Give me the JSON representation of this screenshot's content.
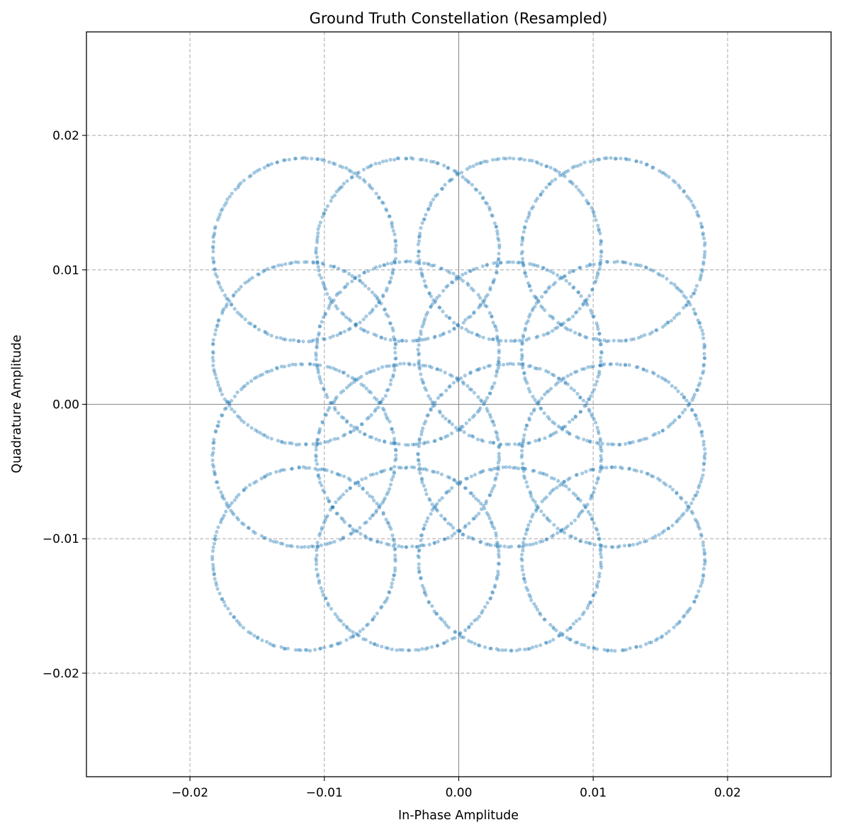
{
  "chart_data": {
    "type": "scatter",
    "title": "Ground Truth Constellation (Resampled)",
    "xlabel": "In-Phase Amplitude",
    "ylabel": "Quadrature Amplitude",
    "xlim": [
      -0.0277,
      0.0277
    ],
    "ylim": [
      -0.0277,
      0.0277
    ],
    "x_ticks": [
      -0.02,
      -0.01,
      0.0,
      0.01,
      0.02
    ],
    "y_ticks": [
      -0.02,
      -0.01,
      0.0,
      0.01,
      0.02
    ],
    "x_tick_labels": [
      "−0.02",
      "−0.01",
      "0.00",
      "0.01",
      "0.02"
    ],
    "y_tick_labels": [
      "−0.02",
      "−0.01",
      "0.00",
      "0.01",
      "0.02"
    ],
    "grid": true,
    "grid_style": "dashed",
    "zero_lines": true,
    "marker_color": "#1f77b4",
    "marker_alpha": 0.4,
    "ring_radius": 0.0068,
    "ring_centers": [
      [
        -0.0115,
        0.0115
      ],
      [
        -0.0038,
        0.0115
      ],
      [
        0.0038,
        0.0115
      ],
      [
        0.0115,
        0.0115
      ],
      [
        -0.0115,
        0.0038
      ],
      [
        -0.0038,
        0.0038
      ],
      [
        0.0038,
        0.0038
      ],
      [
        0.0115,
        0.0038
      ],
      [
        -0.0115,
        -0.0038
      ],
      [
        -0.0038,
        -0.0038
      ],
      [
        0.0038,
        -0.0038
      ],
      [
        0.0115,
        -0.0038
      ],
      [
        -0.0115,
        -0.0115
      ],
      [
        -0.0038,
        -0.0115
      ],
      [
        0.0038,
        -0.0115
      ],
      [
        0.0115,
        -0.0115
      ]
    ],
    "points_per_ring": 160
  }
}
